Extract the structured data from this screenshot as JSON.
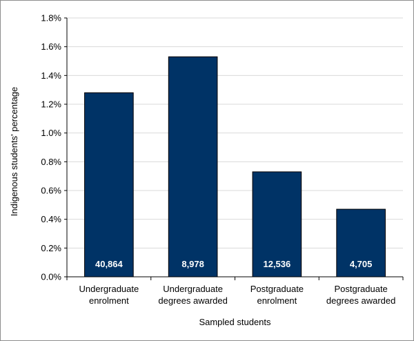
{
  "chart_data": {
    "type": "bar",
    "title": "",
    "xlabel": "Sampled students",
    "ylabel": "Indigenous students' percentage",
    "categories": [
      [
        "Undergraduate",
        "enrolment"
      ],
      [
        "Undergraduate",
        "degrees awarded"
      ],
      [
        "Postgraduate",
        "enrolment"
      ],
      [
        "Postgraduate",
        "degrees awarded"
      ]
    ],
    "values": [
      1.28,
      1.53,
      0.73,
      0.47
    ],
    "data_labels": [
      "40,864",
      "8,978",
      "12,536",
      "4,705"
    ],
    "ylim": [
      0,
      1.8
    ],
    "yticks": [
      0,
      0.2,
      0.4,
      0.6,
      0.8,
      1.0,
      1.2,
      1.4,
      1.6,
      1.8
    ],
    "ytick_labels": [
      "0.0%",
      "0.2%",
      "0.4%",
      "0.6%",
      "0.8%",
      "1.0%",
      "1.2%",
      "1.4%",
      "1.6%",
      "1.8%"
    ],
    "grid": true,
    "legend": "none",
    "colors": {
      "bar": "#003366",
      "bar_edge": "#000000",
      "grid": "#d9d9d9"
    }
  }
}
